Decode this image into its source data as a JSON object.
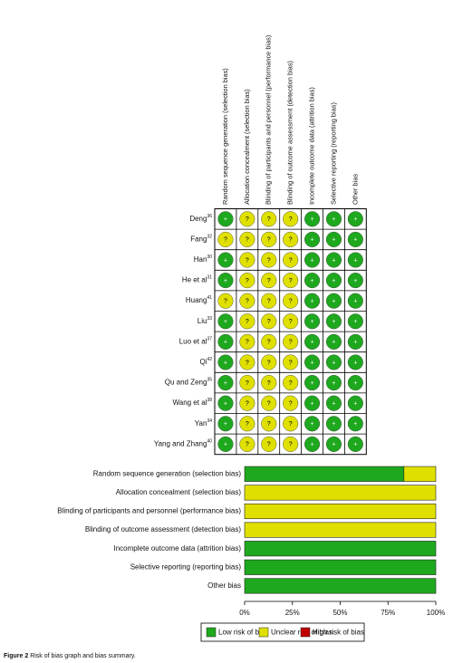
{
  "chart_data": [
    {
      "type": "summary",
      "domains": [
        "Random sequence generation (selection bias)",
        "Allocation concealment (selection bias)",
        "Blinding of participants and personnel (performance bias)",
        "Blinding of outcome assessment (detection bias)",
        "Incomplete outcome data (attrition bias)",
        "Selective reporting (reporting bias)",
        "Other bias"
      ],
      "studies": [
        {
          "name": "Deng",
          "ref": "36"
        },
        {
          "name": "Fang",
          "ref": "32"
        },
        {
          "name": "Han",
          "ref": "30"
        },
        {
          "name": "He et al",
          "ref": "31"
        },
        {
          "name": "Huang",
          "ref": "41"
        },
        {
          "name": "Liu",
          "ref": "33"
        },
        {
          "name": "Luo et al",
          "ref": "37"
        },
        {
          "name": "Qi",
          "ref": "42"
        },
        {
          "name": "Qu and Zeng",
          "ref": "35"
        },
        {
          "name": "Wang et al",
          "ref": "38"
        },
        {
          "name": "Yan",
          "ref": "34"
        },
        {
          "name": "Yang and Zhang",
          "ref": "40"
        }
      ],
      "judgements": [
        [
          "+",
          "?",
          "?",
          "?",
          "+",
          "+",
          "+"
        ],
        [
          "?",
          "?",
          "?",
          "?",
          "+",
          "+",
          "+"
        ],
        [
          "+",
          "?",
          "?",
          "?",
          "+",
          "+",
          "+"
        ],
        [
          "+",
          "?",
          "?",
          "?",
          "+",
          "+",
          "+"
        ],
        [
          "?",
          "?",
          "?",
          "?",
          "+",
          "+",
          "+"
        ],
        [
          "+",
          "?",
          "?",
          "?",
          "+",
          "+",
          "+"
        ],
        [
          "+",
          "?",
          "?",
          "?",
          "+",
          "+",
          "+"
        ],
        [
          "+",
          "?",
          "?",
          "?",
          "+",
          "+",
          "+"
        ],
        [
          "+",
          "?",
          "?",
          "?",
          "+",
          "+",
          "+"
        ],
        [
          "+",
          "?",
          "?",
          "?",
          "+",
          "+",
          "+"
        ],
        [
          "+",
          "?",
          "?",
          "?",
          "+",
          "+",
          "+"
        ],
        [
          "+",
          "?",
          "?",
          "?",
          "+",
          "+",
          "+"
        ]
      ],
      "colors": {
        "+": "#1ea81e",
        "?": "#e0e000"
      }
    },
    {
      "type": "stacked-barh",
      "categories": [
        "Random sequence generation (selection bias)",
        "Allocation concealment (selection bias)",
        "Blinding of participants and personnel (performance bias)",
        "Blinding of outcome assessment (detection bias)",
        "Incomplete outcome data (attrition bias)",
        "Selective reporting (reporting bias)",
        "Other bias"
      ],
      "series": [
        {
          "name": "Low risk of bias",
          "color": "#1ea81e",
          "values": [
            83.33,
            0,
            0,
            0,
            100,
            100,
            100
          ]
        },
        {
          "name": "Unclear risk of bias",
          "color": "#e0e000",
          "values": [
            16.67,
            100,
            100,
            100,
            0,
            0,
            0
          ]
        },
        {
          "name": "High risk of bias",
          "color": "#c00000",
          "values": [
            0,
            0,
            0,
            0,
            0,
            0,
            0
          ]
        }
      ],
      "xlim": [
        0,
        100
      ],
      "xticks": [
        {
          "value": 0,
          "label": "0%"
        },
        {
          "value": 25,
          "label": "25%"
        },
        {
          "value": 50,
          "label": "50%"
        },
        {
          "value": 75,
          "label": "75%"
        },
        {
          "value": 100,
          "label": "100%"
        }
      ],
      "legend": "bottom"
    }
  ],
  "caption": {
    "label": "Figure 2",
    "text": "Risk of bias graph and bias summary."
  }
}
